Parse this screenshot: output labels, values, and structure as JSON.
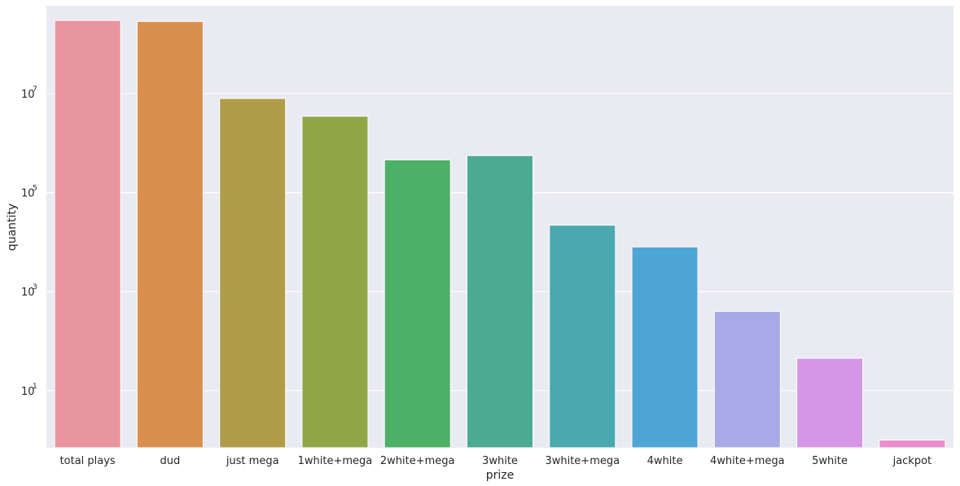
{
  "chart_data": {
    "type": "bar",
    "xlabel": "prize",
    "ylabel": "quantity",
    "yscale": "log",
    "ylim": [
      0.7,
      600000000
    ],
    "yticks": [
      10,
      1000,
      100000,
      10000000
    ],
    "ytick_labels": [
      {
        "base": "10",
        "exp": "1"
      },
      {
        "base": "10",
        "exp": "3"
      },
      {
        "base": "10",
        "exp": "5"
      },
      {
        "base": "10",
        "exp": "7"
      }
    ],
    "categories": [
      "total plays",
      "dud",
      "just mega",
      "1white+mega",
      "2white+mega",
      "3white",
      "3white+mega",
      "4white",
      "4white+mega",
      "5white",
      "jackpot"
    ],
    "values": [
      302575350,
      288000000,
      8000000,
      3500000,
      460000,
      560000,
      22000,
      8000,
      400,
      45,
      1
    ],
    "colors": [
      "#e8959f",
      "#d98f4e",
      "#b09d48",
      "#8fa647",
      "#4cb067",
      "#4aab92",
      "#4ca8b0",
      "#4ea6d4",
      "#a8aae8",
      "#d696e6",
      "#e88fcc"
    ],
    "grid": true,
    "legend": "none",
    "background": "#eaeaf2"
  }
}
